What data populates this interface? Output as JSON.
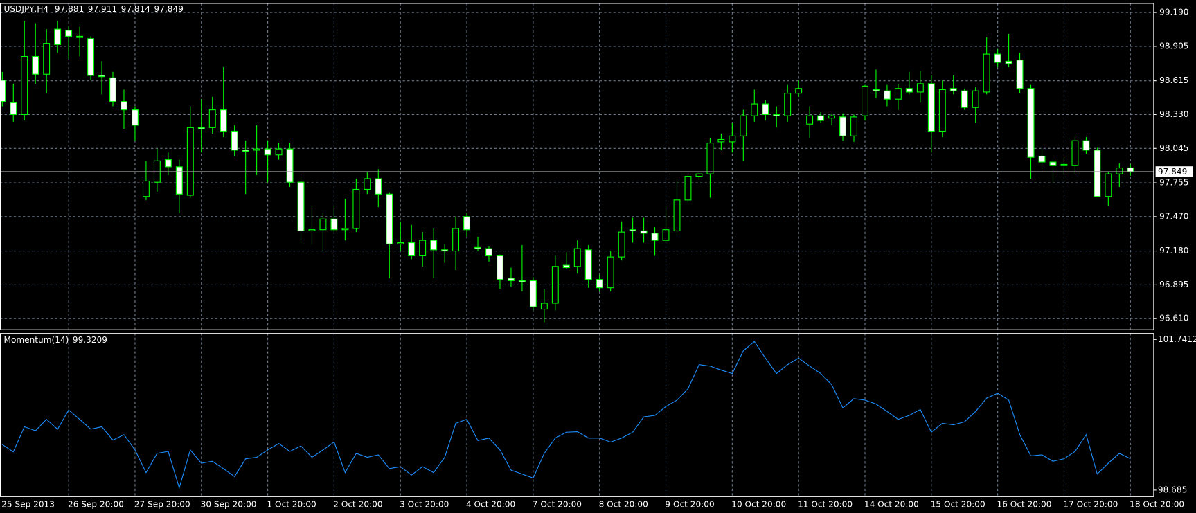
{
  "chart_data": [
    {
      "type": "candlestick",
      "title": "USDJPY,H4",
      "categories": [
        "25 Sep 2013",
        null,
        null,
        null,
        null,
        null,
        "26 Sep 20:00",
        null,
        null,
        null,
        null,
        null,
        "27 Sep 20:00",
        null,
        null,
        null,
        null,
        null,
        "30 Sep 20:00",
        null,
        null,
        null,
        null,
        null,
        "1 Oct 20:00",
        null,
        null,
        null,
        null,
        null,
        "2 Oct 20:00",
        null,
        null,
        null,
        null,
        null,
        "3 Oct 20:00",
        null,
        null,
        null,
        null,
        null,
        "4 Oct 20:00",
        null,
        null,
        null,
        null,
        null,
        "7 Oct 20:00",
        null,
        null,
        null,
        null,
        null,
        "8 Oct 20:00",
        null,
        null,
        null,
        null,
        null,
        "9 Oct 20:00",
        null,
        null,
        null,
        null,
        null,
        "10 Oct 20:00",
        null,
        null,
        null,
        null,
        null,
        "11 Oct 20:00",
        null,
        null,
        null,
        null,
        null,
        "14 Oct 20:00",
        null,
        null,
        null,
        null,
        null,
        "15 Oct 20:00",
        null,
        null,
        null,
        null,
        null,
        "16 Oct 20:00",
        null,
        null,
        null,
        null,
        null,
        "17 Oct 20:00",
        null,
        null,
        null,
        null,
        null,
        "18 Oct 20:00"
      ],
      "open": [
        98.62,
        98.43,
        98.33,
        98.82,
        98.67,
        99.05,
        99.04,
        98.99,
        98.97,
        98.66,
        98.64,
        98.44,
        98.37,
        97.64,
        97.76,
        97.95,
        97.89,
        97.65,
        98.22,
        98.22,
        98.37,
        98.19,
        98.03,
        98.03,
        98.04,
        97.99,
        98.04,
        97.76,
        97.35,
        97.36,
        97.45,
        97.36,
        97.37,
        97.7,
        97.79,
        97.66,
        97.24,
        97.25,
        97.14,
        97.27,
        97.19,
        97.18,
        97.47,
        97.21,
        97.2,
        97.14,
        96.95,
        96.93,
        96.93,
        96.69,
        96.74,
        97.06,
        97.05,
        97.19,
        96.94,
        96.87,
        97.13,
        97.36,
        97.35,
        97.33,
        97.27,
        97.35,
        97.61,
        97.81,
        97.83,
        98.1,
        98.1,
        98.15,
        98.32,
        98.42,
        98.33,
        98.32,
        98.51,
        98.25,
        98.32,
        98.3,
        98.31,
        98.15,
        98.32,
        98.54,
        98.53,
        98.46,
        98.55,
        98.52,
        98.59,
        98.19,
        98.55,
        98.53,
        98.39,
        98.52,
        98.84,
        98.78,
        98.79,
        98.55,
        97.98,
        97.93,
        97.91,
        97.9,
        98.11,
        98.03,
        97.64,
        97.83,
        97.881
      ],
      "high": [
        98.69,
        98.59,
        99.12,
        99.1,
        99.05,
        99.12,
        99.07,
        99.07,
        98.99,
        98.78,
        98.69,
        98.54,
        98.4,
        97.94,
        98.04,
        98.01,
        97.95,
        98.4,
        98.46,
        98.48,
        98.73,
        98.24,
        98.11,
        98.24,
        98.11,
        98.09,
        98.09,
        97.81,
        97.56,
        97.5,
        97.56,
        97.62,
        97.79,
        97.85,
        97.87,
        97.67,
        97.43,
        97.4,
        97.34,
        97.37,
        97.24,
        97.47,
        97.5,
        97.3,
        97.22,
        97.15,
        97.04,
        97.23,
        96.96,
        96.86,
        97.14,
        97.17,
        97.27,
        97.23,
        96.98,
        97.18,
        97.43,
        97.46,
        97.46,
        97.38,
        97.56,
        97.79,
        97.83,
        97.85,
        98.13,
        98.17,
        98.26,
        98.37,
        98.54,
        98.45,
        98.4,
        98.58,
        98.62,
        98.4,
        98.35,
        98.34,
        98.34,
        98.33,
        98.58,
        98.71,
        98.58,
        98.59,
        98.69,
        98.7,
        98.66,
        98.62,
        98.66,
        98.55,
        98.56,
        98.98,
        98.88,
        99.01,
        98.85,
        98.58,
        98.05,
        97.96,
        97.97,
        98.14,
        98.14,
        98.05,
        97.85,
        97.92,
        97.911
      ],
      "low": [
        98.4,
        98.27,
        98.28,
        98.59,
        98.51,
        98.85,
        98.8,
        98.82,
        98.62,
        98.5,
        98.4,
        98.21,
        98.11,
        97.61,
        97.68,
        97.82,
        97.5,
        97.63,
        98.01,
        98.17,
        98.14,
        97.98,
        97.66,
        97.82,
        97.76,
        97.95,
        97.72,
        97.25,
        97.24,
        97.18,
        97.34,
        97.27,
        97.34,
        97.66,
        97.55,
        96.95,
        97.18,
        97.11,
        97.05,
        96.95,
        97.08,
        97.02,
        97.3,
        97.18,
        97.09,
        96.86,
        96.88,
        96.84,
        96.68,
        96.58,
        96.68,
        97.03,
        96.99,
        96.87,
        96.84,
        96.84,
        97.1,
        97.25,
        97.25,
        97.14,
        97.25,
        97.31,
        97.59,
        97.78,
        97.63,
        98.03,
        98.01,
        97.94,
        98.27,
        98.28,
        98.22,
        98.27,
        98.48,
        98.13,
        98.26,
        98.24,
        98.11,
        98.1,
        98.28,
        98.47,
        98.4,
        98.37,
        98.5,
        98.43,
        98.01,
        98.14,
        98.5,
        98.37,
        98.26,
        98.5,
        98.73,
        98.73,
        98.51,
        97.79,
        97.87,
        97.755,
        97.82,
        97.83,
        97.998,
        97.64,
        97.56,
        97.72,
        97.814
      ],
      "close": [
        98.44,
        98.33,
        98.82,
        98.67,
        98.93,
        98.92,
        98.99,
        98.98,
        98.66,
        98.65,
        98.44,
        98.37,
        98.24,
        97.77,
        97.94,
        97.89,
        97.66,
        98.22,
        98.21,
        98.37,
        98.19,
        98.03,
        98.02,
        98.04,
        97.99,
        98.04,
        97.76,
        97.35,
        97.36,
        97.45,
        97.36,
        97.37,
        97.7,
        97.79,
        97.66,
        97.24,
        97.25,
        97.14,
        97.27,
        97.19,
        97.18,
        97.37,
        97.36,
        97.2,
        97.14,
        96.94,
        96.93,
        96.92,
        96.71,
        96.74,
        97.05,
        97.04,
        97.2,
        96.94,
        96.87,
        97.13,
        97.34,
        97.35,
        97.33,
        97.27,
        97.36,
        97.61,
        97.81,
        97.83,
        98.09,
        98.12,
        98.15,
        98.32,
        98.42,
        98.33,
        98.32,
        98.51,
        98.55,
        98.32,
        98.28,
        98.32,
        98.15,
        98.31,
        98.57,
        98.53,
        98.46,
        98.55,
        98.52,
        98.59,
        98.19,
        98.54,
        98.53,
        98.39,
        98.53,
        98.84,
        98.77,
        98.76,
        98.55,
        97.97,
        97.93,
        97.9,
        97.9,
        98.11,
        98.03,
        97.64,
        97.83,
        97.88,
        97.849
      ],
      "ylim": [
        96.52,
        99.27
      ],
      "yticks": [
        {
          "value": 99.19,
          "label": "99.190"
        },
        98.905,
        98.615,
        {
          "value": 98.33,
          "label": "98.330"
        },
        98.045,
        97.755,
        {
          "value": 97.47,
          "label": "97.470"
        },
        {
          "value": 97.18,
          "label": "97.180"
        },
        96.895,
        {
          "value": 96.61,
          "label": "96.610"
        }
      ],
      "grid": true,
      "wick_color": "#00ff00",
      "bull_color": "#000000",
      "bear_color": "#ffffff"
    },
    {
      "type": "line",
      "title": "Momentum(14)",
      "color": "#1e90ff",
      "values": [
        99.61,
        99.46,
        99.97,
        99.89,
        100.12,
        99.92,
        100.31,
        100.12,
        99.92,
        99.97,
        99.7,
        99.81,
        99.5,
        99.04,
        99.43,
        99.47,
        98.73,
        99.5,
        99.23,
        99.27,
        99.12,
        98.96,
        99.32,
        99.35,
        99.5,
        99.63,
        99.47,
        99.58,
        99.35,
        99.5,
        99.66,
        99.04,
        99.43,
        99.35,
        99.4,
        99.12,
        99.16,
        98.99,
        99.16,
        99.04,
        99.35,
        100.04,
        100.12,
        99.69,
        99.74,
        99.5,
        99.09,
        99.01,
        98.93,
        99.43,
        99.74,
        99.86,
        99.87,
        99.74,
        99.74,
        99.66,
        99.74,
        99.86,
        100.17,
        100.2,
        100.38,
        100.51,
        100.74,
        101.23,
        101.2,
        101.12,
        101.05,
        101.51,
        101.7,
        101.36,
        101.05,
        101.23,
        101.36,
        101.2,
        101.05,
        100.82,
        100.35,
        100.54,
        100.51,
        100.43,
        100.28,
        100.12,
        100.2,
        100.32,
        99.86,
        100.04,
        100.01,
        100.07,
        100.28,
        100.55,
        100.65,
        100.51,
        99.81,
        99.38,
        99.4,
        99.27,
        99.32,
        99.47,
        99.81,
        99.01,
        99.23,
        99.43,
        99.3209
      ],
      "ylim": [
        98.56,
        101.87
      ],
      "yticks": [
        98.685,
        101.7412
      ]
    }
  ]
}
